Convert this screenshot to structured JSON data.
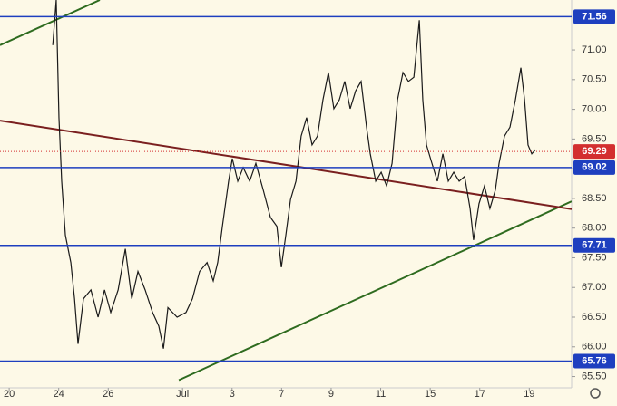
{
  "chart_data": {
    "type": "line",
    "x": [
      1.76,
      1.9,
      2.01,
      2.12,
      2.27,
      2.49,
      2.64,
      2.78,
      3.0,
      3.3,
      3.59,
      3.85,
      4.1,
      4.4,
      4.69,
      4.95,
      5.2,
      5.49,
      5.79,
      6.04,
      6.23,
      6.41,
      6.78,
      7.14,
      7.4,
      7.69,
      7.99,
      8.24,
      8.42,
      8.61,
      8.86,
      9.01,
      9.23,
      9.45,
      9.71,
      9.96,
      10.26,
      10.55,
      10.81,
      10.99,
      11.17,
      11.36,
      11.58,
      11.79,
      12.01,
      12.23,
      12.45,
      12.67,
      12.89,
      13.11,
      13.33,
      13.55,
      13.77,
      13.99,
      14.21,
      14.43,
      14.58,
      14.8,
      15.02,
      15.24,
      15.46,
      15.68,
      15.9,
      16.12,
      16.34,
      16.56,
      16.7,
      16.85,
      17.07,
      17.29,
      17.51,
      17.73,
      17.95,
      18.17,
      18.39,
      18.61,
      18.75,
      18.97,
      19.19,
      19.41,
      19.63,
      19.78,
      20.0,
      20.22,
      20.44,
      20.66,
      20.81,
      20.95,
      21.1,
      21.25
    ],
    "series": [
      {
        "color": "#1a1a1a",
        "values": [
          71.08,
          71.84,
          69.86,
          68.79,
          67.88,
          67.42,
          66.81,
          66.05,
          66.81,
          66.96,
          66.5,
          66.96,
          66.58,
          66.96,
          67.65,
          66.81,
          67.27,
          66.96,
          66.58,
          66.35,
          65.97,
          66.66,
          66.5,
          66.58,
          66.81,
          67.27,
          67.42,
          67.11,
          67.42,
          68.03,
          68.79,
          69.17,
          68.79,
          69.02,
          68.79,
          69.09,
          68.64,
          68.18,
          68.03,
          67.34,
          67.88,
          68.48,
          68.79,
          69.55,
          69.86,
          69.4,
          69.55,
          70.16,
          70.62,
          70.01,
          70.16,
          70.47,
          70.01,
          70.31,
          70.47,
          69.7,
          69.25,
          68.79,
          68.94,
          68.71,
          69.09,
          70.16,
          70.62,
          70.47,
          70.54,
          71.5,
          70.16,
          69.4,
          69.09,
          68.79,
          69.25,
          68.79,
          68.94,
          68.79,
          68.87,
          68.33,
          67.8,
          68.41,
          68.71,
          68.33,
          68.64,
          69.09,
          69.55,
          69.7,
          70.16,
          70.7,
          70.16,
          69.4,
          69.25,
          69.32
        ]
      }
    ],
    "xlim": [
      -0.37,
      22.71
    ],
    "ylim": [
      65.31,
      71.84
    ],
    "xticks": [
      {
        "value": 0,
        "label": "20"
      },
      {
        "value": 2,
        "label": "24"
      },
      {
        "value": 4,
        "label": "26"
      },
      {
        "value": 7,
        "label": "Jul"
      },
      {
        "value": 9,
        "label": "3"
      },
      {
        "value": 11,
        "label": "7"
      },
      {
        "value": 13,
        "label": "9"
      },
      {
        "value": 15,
        "label": "11"
      },
      {
        "value": 17,
        "label": "15"
      },
      {
        "value": 19,
        "label": "17"
      },
      {
        "value": 21,
        "label": "19"
      }
    ],
    "yticks": [
      {
        "value": 65.5,
        "label": "65.50"
      },
      {
        "value": 66,
        "label": "66.00"
      },
      {
        "value": 66.5,
        "label": "66.50"
      },
      {
        "value": 67,
        "label": "67.00"
      },
      {
        "value": 67.5,
        "label": "67.50"
      },
      {
        "value": 68,
        "label": "68.00"
      },
      {
        "value": 68.5,
        "label": "68.50"
      },
      {
        "value": 69,
        "label": "69.00"
      },
      {
        "value": 69.5,
        "label": "69.50"
      },
      {
        "value": 70,
        "label": "70.00"
      },
      {
        "value": 70.5,
        "label": "70.50"
      },
      {
        "value": 71,
        "label": "71.00"
      }
    ],
    "levels": [
      71.56,
      69.02,
      67.71,
      65.76
    ],
    "level_color": "#1e3fbf",
    "last_price": 69.29,
    "last_price_color": "#d32f2f",
    "trendlines": [
      {
        "color": "#2e6b1f",
        "x": [
          -0.37,
          3.66
        ],
        "y": [
          71.08,
          71.84
        ]
      },
      {
        "color": "#2e6b1f",
        "x": [
          6.85,
          22.71
        ],
        "y": [
          65.44,
          68.45
        ]
      },
      {
        "color": "#7a1f1f",
        "x": [
          -0.37,
          22.71
        ],
        "y": [
          69.81,
          68.32
        ]
      }
    ]
  }
}
